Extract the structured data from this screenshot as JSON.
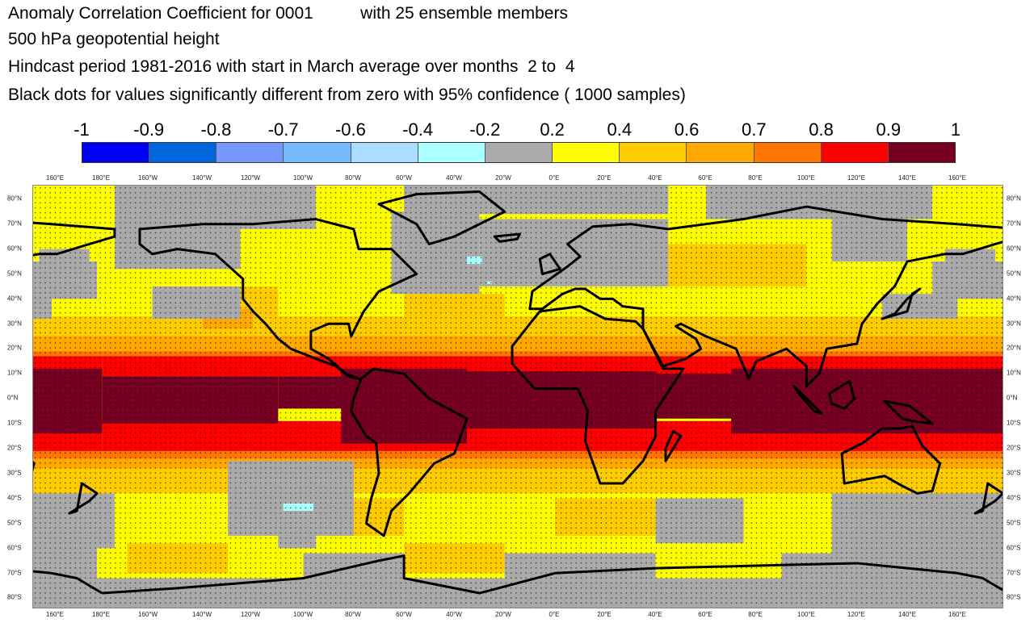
{
  "title_lines": [
    "Anomaly Correlation Coefficient for 0001          with 25 ensemble members",
    "500 hPa geopotential height",
    "Hindcast period 1981-2016 with start in March average over months  2 to  4",
    "Black dots for values significantly different from zero with 95% confidence ( 1000 samples)"
  ],
  "colorbar": {
    "labels": [
      "-1",
      "-0.9",
      "-0.8",
      "-0.7",
      "-0.6",
      "-0.4",
      "-0.2",
      "0.2",
      "0.4",
      "0.6",
      "0.7",
      "0.8",
      "0.9",
      "1"
    ],
    "colors": [
      "#0000f5",
      "#0066dd",
      "#7799ff",
      "#77bbff",
      "#aaddff",
      "#aaffff",
      "#aaaaaa",
      "#ffff00",
      "#ffcc00",
      "#ffa800",
      "#ff7700",
      "#ff0000",
      "#770022"
    ]
  },
  "lon_labels": [
    "160°E",
    "180°E",
    "160°W",
    "140°W",
    "120°W",
    "100°W",
    "80°W",
    "60°W",
    "40°W",
    "20°W",
    "0°E",
    "20°E",
    "40°E",
    "60°E",
    "80°E",
    "100°E",
    "120°E",
    "140°E",
    "160°E"
  ],
  "lat_labels": [
    "80°N",
    "70°N",
    "60°N",
    "50°N",
    "40°N",
    "30°N",
    "20°N",
    "10°N",
    "0°N",
    "10°S",
    "20°S",
    "30°S",
    "40°S",
    "50°S",
    "60°S",
    "70°S",
    "80°S"
  ],
  "map": {
    "variable": "500 hPa geopotential height",
    "dots_color": "#000000",
    "coastline_color": "#000000"
  }
}
